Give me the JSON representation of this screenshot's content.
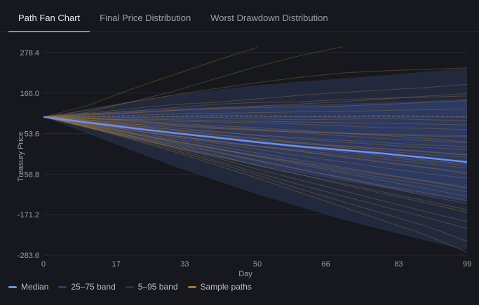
{
  "tabs": [
    {
      "label": "Path Fan Chart",
      "active": true
    },
    {
      "label": "Final Price Distribution",
      "active": false
    },
    {
      "label": "Worst Drawdown Distribution",
      "active": false
    }
  ],
  "colors": {
    "median": "#6d8ff5",
    "band_25_75": "#2e3c66",
    "band_5_95": "#232a3e",
    "sample": "#a07a34",
    "accent": "#6d8ff5"
  },
  "legend": [
    {
      "label": "Median",
      "color": "#6d8ff5"
    },
    {
      "label": "25–75 band",
      "color": "#2e3c66"
    },
    {
      "label": "5–95 band",
      "color": "#2a3146"
    },
    {
      "label": "Sample paths",
      "color": "#a07a34"
    }
  ],
  "chart_data": {
    "type": "line",
    "xlabel": "Day",
    "ylabel": "Treasury Price",
    "xlim": [
      0,
      99
    ],
    "ylim": [
      -283.6,
      334.8
    ],
    "x_ticks": [
      "0",
      "17",
      "33",
      "50",
      "66",
      "83",
      "99"
    ],
    "y_ticks": [
      "278.4",
      "166.0",
      "53.6",
      "-58.8",
      "-171.2",
      "-283.6"
    ],
    "y_tick_values": [
      278.4,
      166.0,
      53.6,
      -58.8,
      -171.2,
      -283.6
    ],
    "reference_line": 100,
    "x": [
      0,
      10,
      20,
      30,
      40,
      50,
      60,
      70,
      80,
      90,
      99
    ],
    "series": [
      {
        "name": "Median",
        "values": [
          100,
          85,
          70,
          56,
          43,
          30,
          18,
          8,
          -2,
          -14,
          -25
        ]
      }
    ],
    "bands": [
      {
        "name": "25–75 band",
        "upper": [
          100,
          110,
          118,
          124,
          128,
          131,
          134,
          137,
          140,
          145,
          150
        ],
        "lower": [
          100,
          70,
          42,
          15,
          -10,
          -34,
          -56,
          -78,
          -98,
          -118,
          -135
        ]
      },
      {
        "name": "5–95 band",
        "upper": [
          100,
          122,
          142,
          160,
          175,
          188,
          198,
          207,
          216,
          226,
          235
        ],
        "lower": [
          100,
          55,
          10,
          -35,
          -75,
          -115,
          -150,
          -185,
          -215,
          -245,
          -270
        ]
      }
    ],
    "sample_paths": [
      [
        100,
        130,
        175,
        215,
        255,
        293
      ],
      [
        100,
        112,
        140,
        170,
        205,
        240,
        270,
        295
      ],
      [
        100,
        118,
        140,
        160,
        178,
        195,
        210,
        222,
        228,
        232,
        236
      ],
      [
        100,
        108,
        115,
        125,
        135,
        140,
        142,
        148,
        152,
        155,
        158
      ],
      [
        100,
        105,
        110,
        118,
        122,
        126,
        128,
        130,
        135,
        140,
        145
      ],
      [
        100,
        102,
        98,
        101,
        105,
        103,
        100,
        102,
        104,
        101,
        100
      ],
      [
        100,
        98,
        95,
        92,
        90,
        88,
        86,
        84,
        82,
        80,
        78
      ],
      [
        100,
        95,
        88,
        80,
        72,
        66,
        60,
        55,
        52,
        50,
        48
      ],
      [
        100,
        92,
        82,
        70,
        60,
        48,
        38,
        30,
        22,
        15,
        10
      ],
      [
        100,
        90,
        78,
        65,
        52,
        40,
        28,
        15,
        5,
        -5,
        -12
      ],
      [
        100,
        88,
        72,
        58,
        44,
        30,
        18,
        6,
        -8,
        -20,
        -30
      ],
      [
        100,
        85,
        68,
        50,
        32,
        18,
        5,
        -10,
        -25,
        -40,
        -55
      ],
      [
        100,
        84,
        65,
        45,
        28,
        10,
        -8,
        -25,
        -42,
        -58,
        -70
      ],
      [
        100,
        82,
        60,
        40,
        20,
        0,
        -20,
        -40,
        -60,
        -78,
        -95
      ],
      [
        100,
        80,
        58,
        35,
        12,
        -10,
        -32,
        -55,
        -78,
        -100,
        -120
      ],
      [
        100,
        78,
        55,
        30,
        5,
        -20,
        -45,
        -70,
        -95,
        -120,
        -140
      ],
      [
        100,
        76,
        50,
        22,
        -5,
        -35,
        -60,
        -88,
        -115,
        -140,
        -165
      ],
      [
        100,
        75,
        48,
        18,
        -12,
        -45,
        -75,
        -105,
        -135,
        -165,
        -190
      ],
      [
        100,
        74,
        45,
        15,
        -20,
        -55,
        -88,
        -120,
        -150,
        -180,
        -210
      ],
      [
        100,
        73,
        42,
        10,
        -25,
        -62,
        -100,
        -135,
        -170,
        -205,
        -245
      ],
      [
        100,
        72,
        40,
        5,
        -32,
        -70,
        -110,
        -150,
        -190,
        -230,
        -275
      ],
      [
        100,
        96,
        92,
        88,
        86,
        84,
        80,
        75,
        70,
        68,
        65
      ],
      [
        100,
        97,
        90,
        83,
        76,
        70,
        62,
        55,
        48,
        40,
        30
      ],
      [
        100,
        92,
        85,
        78,
        70,
        64,
        56,
        48,
        40,
        34,
        28
      ],
      [
        100,
        88,
        74,
        62,
        50,
        40,
        30,
        20,
        12,
        4,
        -5
      ],
      [
        100,
        86,
        70,
        55,
        42,
        28,
        15,
        2,
        -12,
        -24,
        -35
      ],
      [
        100,
        83,
        64,
        48,
        32,
        18,
        4,
        -12,
        -28,
        -42,
        -58
      ],
      [
        100,
        79,
        56,
        34,
        14,
        -8,
        -28,
        -50,
        -70,
        -88,
        -108
      ],
      [
        100,
        110,
        122,
        134,
        140,
        150,
        160,
        168,
        175,
        182,
        190
      ],
      [
        100,
        106,
        112,
        118,
        124,
        130,
        136,
        142,
        150,
        158,
        165
      ],
      [
        100,
        101,
        104,
        108,
        110,
        112,
        114,
        115,
        118,
        120,
        122
      ],
      [
        100,
        95,
        92,
        96,
        98,
        95,
        92,
        94,
        96,
        92,
        90
      ],
      [
        100,
        90,
        80,
        75,
        68,
        62,
        58,
        54,
        50,
        47,
        45
      ],
      [
        100,
        86,
        76,
        66,
        58,
        50,
        42,
        35,
        28,
        22,
        18
      ],
      [
        100,
        84,
        70,
        58,
        46,
        35,
        26,
        18,
        10,
        2,
        -6
      ],
      [
        100,
        81,
        64,
        48,
        34,
        20,
        8,
        -5,
        -18,
        -30,
        -42
      ],
      [
        100,
        77,
        54,
        32,
        12,
        -8,
        -26,
        -44,
        -62,
        -80,
        -98
      ],
      [
        100,
        74,
        48,
        26,
        2,
        -22,
        -46,
        -68,
        -92,
        -112,
        -132
      ],
      [
        100,
        71,
        44,
        18,
        -8,
        -34,
        -60,
        -84,
        -110,
        -134,
        -158
      ]
    ]
  }
}
